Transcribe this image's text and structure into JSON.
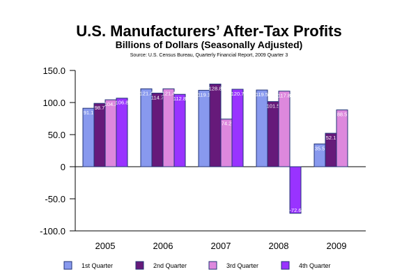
{
  "chart_data": {
    "type": "bar",
    "title": "U.S. Manufacturers’ After-Tax Profits",
    "subtitle": "Billions of Dollars (Seasonally Adjusted)",
    "source": "Source:     U.S. Census Bureau, Quarterly Financial Report, 2009 Quarter 3",
    "categories": [
      "2005",
      "2006",
      "2007",
      "2008",
      "2009"
    ],
    "ylim": [
      -100,
      150
    ],
    "yticks": [
      "150.0",
      "100.0",
      "50.0",
      "0",
      "-50.0",
      "-100.0"
    ],
    "ytick_values": [
      150,
      100,
      50,
      0,
      -50,
      -100
    ],
    "grid": false,
    "legend_placement": "bottom",
    "series": [
      {
        "name": "1st Quarter",
        "color": "#8899ee",
        "values": [
          91.1,
          121.4,
          119.1,
          119.5,
          35.5
        ]
      },
      {
        "name": "2nd Quarter",
        "color": "#661a7a",
        "values": [
          98.7,
          114.7,
          128.8,
          101.5,
          52.1
        ]
      },
      {
        "name": "3rd Quarter",
        "color": "#dd88dd",
        "values": [
          104.3,
          121.4,
          74.2,
          117.8,
          88.5
        ]
      },
      {
        "name": "4th Quarter",
        "color": "#9933ff",
        "values": [
          106.8,
          112.8,
          120.7,
          -72.6,
          null
        ]
      }
    ]
  }
}
